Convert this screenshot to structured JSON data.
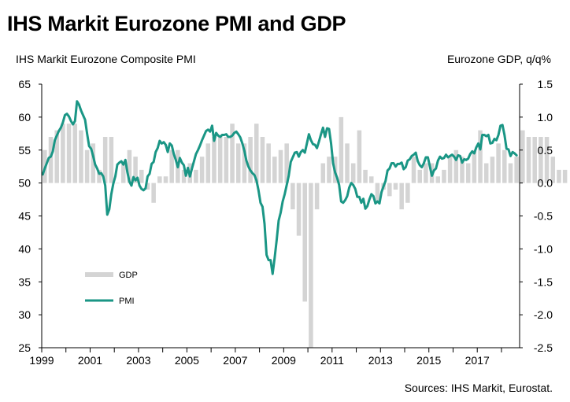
{
  "title": "IHS Markit Eurozone PMI and GDP",
  "source": "Sources: IHS Markit, Eurostat.",
  "colors": {
    "gdp": "#d4d4d4",
    "pmi": "#1a9685",
    "axis": "#000000"
  },
  "chart_data": {
    "type": "bar+line",
    "title": "IHS Markit Eurozone PMI and GDP",
    "left_axis": {
      "label": "IHS Markit Eurozone Composite  PMI",
      "range": [
        25,
        65
      ],
      "ticks": [
        65,
        60,
        55,
        50,
        45,
        40,
        35,
        30,
        25
      ],
      "tick_labels": [
        "65",
        "60",
        "55",
        "50",
        "45",
        "40",
        "35",
        "30",
        "25"
      ]
    },
    "right_axis": {
      "label": "Eurozone GDP, q/q%",
      "range": [
        -2.5,
        1.5
      ],
      "ticks": [
        1.5,
        1.0,
        0.5,
        0.0,
        -0.5,
        -1.0,
        -1.5,
        -2.0,
        -2.5
      ],
      "tick_labels": [
        "1.5",
        "1.0",
        "0.5",
        "0.0",
        "-0.5",
        "-1.0",
        "-1.5",
        "-2.0",
        "-2.5"
      ]
    },
    "x_axis": {
      "range": [
        1999.0,
        2018.75
      ],
      "year_ticks": [
        1999,
        2000,
        2001,
        2002,
        2003,
        2004,
        2005,
        2006,
        2007,
        2008,
        2009,
        2010,
        2011,
        2012,
        2013,
        2014,
        2015,
        2016,
        2017,
        2018
      ],
      "labels": [
        {
          "year": 1999,
          "text": "1999"
        },
        {
          "year": 2001,
          "text": "2001"
        },
        {
          "year": 2003,
          "text": "2003"
        },
        {
          "year": 2005,
          "text": "2005"
        },
        {
          "year": 2007,
          "text": "2007"
        },
        {
          "year": 2009,
          "text": "2009"
        },
        {
          "year": 2011,
          "text": "2011"
        },
        {
          "year": 2013,
          "text": "2013"
        },
        {
          "year": 2015,
          "text": "2015"
        },
        {
          "year": 2017,
          "text": "2017"
        }
      ]
    },
    "legend": {
      "placement": "bottom-left",
      "items": [
        {
          "name": "GDP",
          "key": "gdp"
        },
        {
          "name": "PMI",
          "key": "pmi"
        }
      ]
    },
    "series": [
      {
        "name": "GDP",
        "axis": "right",
        "type": "bar",
        "start": 1999.0,
        "step": 0.25,
        "values": [
          0.5,
          0.7,
          0.8,
          0.9,
          0.9,
          0.9,
          0.8,
          0.5,
          0.6,
          0.2,
          0.7,
          0.7,
          0.0,
          0.3,
          0.5,
          0.4,
          0.2,
          -0.1,
          -0.3,
          0.1,
          0.1,
          0.5,
          0.5,
          0.2,
          0.3,
          0.2,
          0.4,
          0.6,
          0.7,
          0.7,
          0.7,
          0.9,
          0.6,
          0.6,
          0.7,
          0.9,
          0.7,
          0.6,
          0.4,
          0.5,
          0.6,
          -0.4,
          -0.8,
          -1.8,
          -2.6,
          -0.4,
          0.3,
          0.4,
          0.4,
          1.0,
          0.6,
          0.3,
          0.8,
          0.2,
          0.1,
          -0.3,
          -0.1,
          -0.2,
          -0.1,
          -0.4,
          -0.3,
          0.4,
          0.2,
          0.3,
          0.3,
          0.1,
          0.2,
          0.4,
          0.5,
          0.4,
          0.3,
          0.5,
          0.8,
          0.3,
          0.4,
          0.6,
          0.5,
          0.3,
          0.4,
          0.8,
          0.7,
          0.7,
          0.7,
          0.7,
          0.4,
          0.2,
          0.2
        ]
      },
      {
        "name": "PMI",
        "axis": "left",
        "type": "line",
        "start": 1999.0,
        "step": 0.0833333,
        "values": [
          51.3,
          52.2,
          53.0,
          53.8,
          54.0,
          54.8,
          56.5,
          57.2,
          57.9,
          58.4,
          59.2,
          60.3,
          60.5,
          60.1,
          59.4,
          58.9,
          59.4,
          62.4,
          61.9,
          61.0,
          60.3,
          59.6,
          57.5,
          55.6,
          55.2,
          54.1,
          52.8,
          52.2,
          51.4,
          51.5,
          51.0,
          49.6,
          45.2,
          46.0,
          48.3,
          49.9,
          51.0,
          52.8,
          53.1,
          53.3,
          52.8,
          53.5,
          51.6,
          50.2,
          49.6,
          50.9,
          50.4,
          50.8,
          49.6,
          49.1,
          48.9,
          49.2,
          51.0,
          51.4,
          52.9,
          53.2,
          54.7,
          55.3,
          56.4,
          56.0,
          56.2,
          55.8,
          54.7,
          56.0,
          55.7,
          54.4,
          53.5,
          52.4,
          53.8,
          53.1,
          52.7,
          51.1,
          52.3,
          51.0,
          52.2,
          53.3,
          54.4,
          55.0,
          55.7,
          56.5,
          57.2,
          57.9,
          58.1,
          57.8,
          58.7,
          56.4,
          57.6,
          57.2,
          57.0,
          57.3,
          57.3,
          57.4,
          57.0,
          57.0,
          57.2,
          57.6,
          57.8,
          57.4,
          56.9,
          56.0,
          54.9,
          53.4,
          52.5,
          51.9,
          51.5,
          51.2,
          50.4,
          48.9,
          47.0,
          46.4,
          43.8,
          39.1,
          38.3,
          38.3,
          36.2,
          38.6,
          41.3,
          44.3,
          45.5,
          47.2,
          48.3,
          49.7,
          51.1,
          53.2,
          53.9,
          54.6,
          54.7,
          54.0,
          54.7,
          55.0,
          54.6,
          56.0,
          57.4,
          56.5,
          55.9,
          55.8,
          55.3,
          56.3,
          57.4,
          58.4,
          57.0,
          58.3,
          58.2,
          56.0,
          53.0,
          51.6,
          50.8,
          49.7,
          47.2,
          47.0,
          47.4,
          48.0,
          49.3,
          50.0,
          49.7,
          49.1,
          47.9,
          47.9,
          47.0,
          47.6,
          46.1,
          46.5,
          47.5,
          48.3,
          48.0,
          46.9,
          47.2,
          46.9,
          48.6,
          49.5,
          50.3,
          51.9,
          52.2,
          53.0,
          53.0,
          52.5,
          52.9,
          52.9,
          53.1,
          52.1,
          52.4,
          53.4,
          53.6,
          54.1,
          54.3,
          54.6,
          53.3,
          52.7,
          52.4,
          53.0,
          53.9,
          53.9,
          52.5,
          51.1,
          51.9,
          52.2,
          53.4,
          54.0,
          53.7,
          53.8,
          54.3,
          53.9,
          54.1,
          54.3,
          54.0,
          53.5,
          54.2,
          54.1,
          53.1,
          53.6,
          53.5,
          53.7,
          54.4,
          54.8,
          54.5,
          55.4,
          56.0,
          55.1,
          57.3,
          57.3,
          57.1,
          57.3,
          56.0,
          56.1,
          56.7,
          56.5,
          57.3,
          58.7,
          58.8,
          57.3,
          55.2,
          55.1,
          54.1,
          54.7,
          54.5,
          54.2
        ]
      }
    ]
  }
}
